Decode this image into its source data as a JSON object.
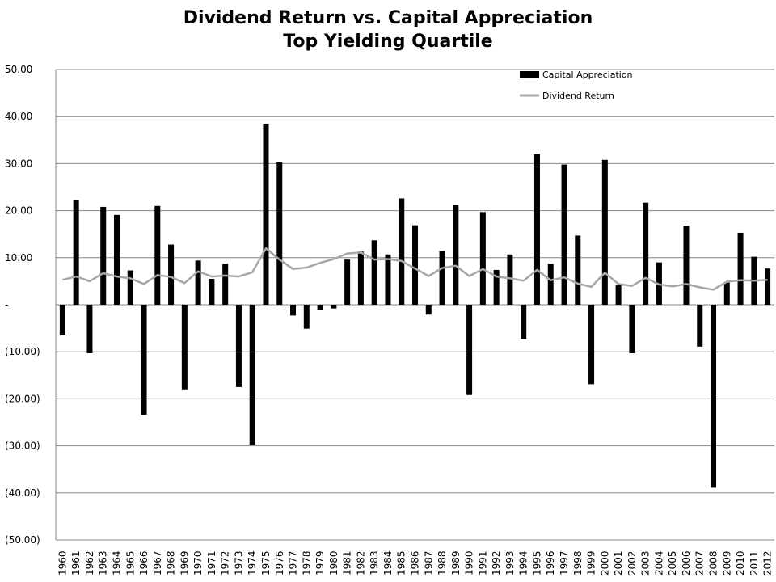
{
  "chart_data": {
    "type": "bar",
    "title": "Dividend Return vs. Capital Appreciation",
    "subtitle": "Top Yielding Quartile",
    "xlabel": "",
    "ylabel": "",
    "ylim": [
      -50,
      50
    ],
    "y_ticks": [
      {
        "value": 50,
        "label": "50.00"
      },
      {
        "value": 40,
        "label": "40.00"
      },
      {
        "value": 30,
        "label": "30.00"
      },
      {
        "value": 20,
        "label": "20.00"
      },
      {
        "value": 10,
        "label": "10.00"
      },
      {
        "value": 0,
        "label": "-"
      },
      {
        "value": -10,
        "label": "(10.00)"
      },
      {
        "value": -20,
        "label": "(20.00)"
      },
      {
        "value": -30,
        "label": "(30.00)"
      },
      {
        "value": -40,
        "label": "(40.00)"
      },
      {
        "value": -50,
        "label": "(50.00)"
      }
    ],
    "grid": true,
    "legend_position": "top-right",
    "categories": [
      "1960",
      "1961",
      "1962",
      "1963",
      "1964",
      "1965",
      "1966",
      "1967",
      "1968",
      "1969",
      "1970",
      "1971",
      "1972",
      "1973",
      "1974",
      "1975",
      "1976",
      "1977",
      "1978",
      "1979",
      "1980",
      "1981",
      "1982",
      "1983",
      "1984",
      "1985",
      "1986",
      "1987",
      "1988",
      "1989",
      "1990",
      "1991",
      "1992",
      "1993",
      "1994",
      "1995",
      "1996",
      "1997",
      "1998",
      "1999",
      "2000",
      "2001",
      "2002",
      "2003",
      "2004",
      "2005",
      "2006",
      "2007",
      "2008",
      "2009",
      "2010",
      "2011",
      "2012"
    ],
    "series": [
      {
        "name": "Capital Appreciation",
        "kind": "bar",
        "color": "#000000",
        "values": [
          -6.5,
          22.2,
          -10.3,
          20.8,
          19.1,
          7.3,
          -23.4,
          21.0,
          12.8,
          -18.0,
          9.4,
          5.5,
          8.7,
          -17.5,
          -29.8,
          38.5,
          30.3,
          -2.3,
          -5.1,
          -1.1,
          -0.8,
          9.6,
          11.3,
          13.7,
          10.7,
          22.6,
          16.9,
          -2.1,
          11.5,
          21.3,
          -19.2,
          19.7,
          7.4,
          10.7,
          -7.3,
          32.0,
          8.7,
          29.8,
          14.7,
          -16.9,
          30.8,
          4.2,
          -10.3,
          21.7,
          9.0,
          0,
          16.8,
          -8.9,
          -38.9,
          4.7,
          15.3,
          10.2,
          7.7
        ]
      },
      {
        "name": "Dividend Return",
        "kind": "line",
        "color": "#a6a6a6",
        "values": [
          5.3,
          6.0,
          5.0,
          6.7,
          6.0,
          5.6,
          4.4,
          6.3,
          5.9,
          4.6,
          7.1,
          6.0,
          6.2,
          6.0,
          6.9,
          12.0,
          9.6,
          7.6,
          7.9,
          8.9,
          9.7,
          10.9,
          11.1,
          9.6,
          9.7,
          9.3,
          7.7,
          6.1,
          7.8,
          8.3,
          6.1,
          7.6,
          6.0,
          5.6,
          5.1,
          7.4,
          5.2,
          5.8,
          4.5,
          3.8,
          6.8,
          4.4,
          4.0,
          5.7,
          4.3,
          3.9,
          4.4,
          3.7,
          3.2,
          4.9,
          5.2,
          5.1,
          5.3
        ]
      }
    ]
  }
}
